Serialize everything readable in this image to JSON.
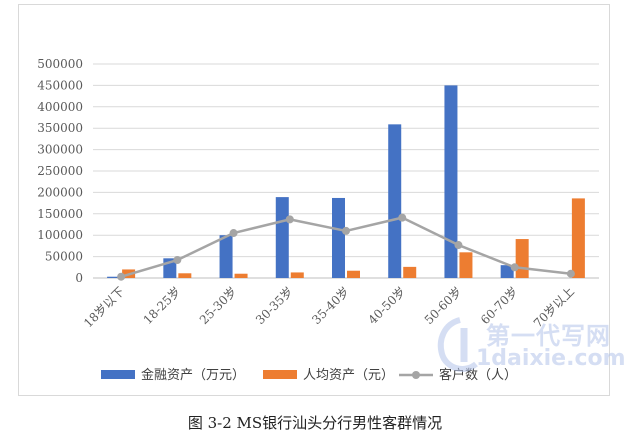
{
  "chart_data": {
    "type": "bar",
    "categories": [
      "18岁以下",
      "18-25岁",
      "25-30岁",
      "30-35岁",
      "35-40岁",
      "40-50岁",
      "50-60岁",
      "60-70岁",
      "70岁以上"
    ],
    "series": [
      {
        "name": "金融资产（万元）",
        "type": "bar",
        "color": "#4472c4",
        "values": [
          3000,
          46000,
          100000,
          189000,
          187000,
          359000,
          450000,
          30000,
          0
        ]
      },
      {
        "name": "人均资产（元）",
        "type": "bar",
        "color": "#ed7d31",
        "values": [
          20000,
          11000,
          10000,
          13000,
          17000,
          26000,
          60000,
          91000,
          186000
        ]
      },
      {
        "name": "客户数（人）",
        "type": "line",
        "color": "#a5a5a5",
        "values": [
          3000,
          42000,
          105000,
          137000,
          110000,
          141000,
          77000,
          25000,
          10000
        ]
      }
    ],
    "yticks": [
      "0",
      "50000",
      "100000",
      "150000",
      "200000",
      "250000",
      "300000",
      "350000",
      "400000",
      "450000",
      "500000"
    ],
    "ylim": [
      0,
      500000
    ],
    "grid": true,
    "legend": "bottom"
  },
  "caption": "图 3-2 MS银行汕头分行男性客群情况",
  "watermark": {
    "top": "第一代写网",
    "bottom": "1daixie.com"
  }
}
